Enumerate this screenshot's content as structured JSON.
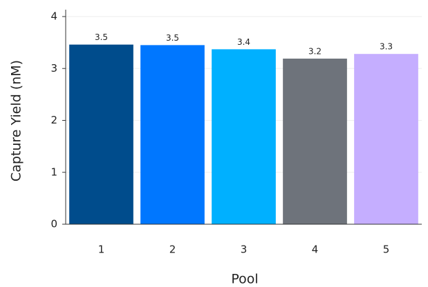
{
  "chart_data": {
    "type": "bar",
    "xlabel": "Pool",
    "ylabel": "Capture Yield (nM)",
    "categories": [
      "1",
      "2",
      "3",
      "4",
      "5"
    ],
    "values": [
      3.46,
      3.45,
      3.37,
      3.19,
      3.28
    ],
    "value_labels": [
      "3.5",
      "3.5",
      "3.4",
      "3.2",
      "3.3"
    ],
    "colors": [
      "#004c8c",
      "#0077ff",
      "#00b0ff",
      "#6e737b",
      "#c5aeff"
    ],
    "ylim": [
      0,
      4
    ],
    "yticks": [
      0,
      1,
      2,
      3,
      4
    ],
    "grid": true
  }
}
